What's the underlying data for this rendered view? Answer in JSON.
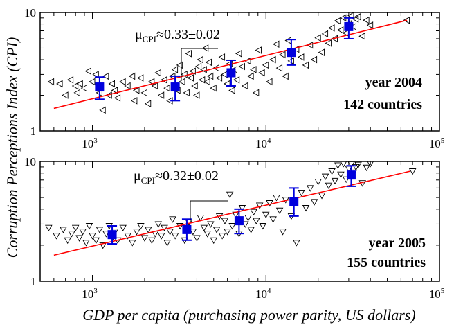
{
  "chart_data": [
    {
      "type": "scatter",
      "xscale": "log",
      "yscale": "log",
      "xlim": [
        500,
        100000
      ],
      "ylim": [
        1,
        10
      ],
      "annotation": {
        "year": "year 2004",
        "countries": "142 countries"
      },
      "mu": {
        "symbol": "μ",
        "sub": "CPI",
        "text": "≈0.33±0.02"
      },
      "fit_line": {
        "color": "#ff0000",
        "points": [
          {
            "x": 600,
            "y": 1.55
          },
          {
            "x": 65000,
            "y": 8.6
          }
        ]
      },
      "binned": {
        "color": "#0000dd",
        "points": [
          {
            "x": 1100,
            "y": 2.35,
            "lo": 1.85,
            "hi": 2.85
          },
          {
            "x": 3000,
            "y": 2.35,
            "lo": 1.8,
            "hi": 2.9
          },
          {
            "x": 6300,
            "y": 3.1,
            "lo": 2.4,
            "hi": 3.95
          },
          {
            "x": 14000,
            "y": 4.6,
            "lo": 3.6,
            "hi": 5.9
          },
          {
            "x": 30000,
            "y": 7.6,
            "lo": 6.0,
            "hi": 9.0
          }
        ]
      },
      "marker": "triangle-left",
      "scatter": [
        {
          "x": 580,
          "y": 2.6
        },
        {
          "x": 650,
          "y": 2.5
        },
        {
          "x": 700,
          "y": 2.0
        },
        {
          "x": 750,
          "y": 2.7
        },
        {
          "x": 800,
          "y": 2.4
        },
        {
          "x": 820,
          "y": 2.1
        },
        {
          "x": 850,
          "y": 2.5
        },
        {
          "x": 900,
          "y": 2.3
        },
        {
          "x": 950,
          "y": 3.2
        },
        {
          "x": 1000,
          "y": 2.6
        },
        {
          "x": 1050,
          "y": 3.0
        },
        {
          "x": 1100,
          "y": 2.1
        },
        {
          "x": 1150,
          "y": 1.5
        },
        {
          "x": 1200,
          "y": 2.9
        },
        {
          "x": 1250,
          "y": 2.0
        },
        {
          "x": 1300,
          "y": 2.5
        },
        {
          "x": 1350,
          "y": 2.2
        },
        {
          "x": 1400,
          "y": 1.9
        },
        {
          "x": 1500,
          "y": 2.6
        },
        {
          "x": 1600,
          "y": 2.4
        },
        {
          "x": 1700,
          "y": 2.9
        },
        {
          "x": 1750,
          "y": 1.8
        },
        {
          "x": 1800,
          "y": 2.2
        },
        {
          "x": 1900,
          "y": 2.8
        },
        {
          "x": 2000,
          "y": 2.1
        },
        {
          "x": 2100,
          "y": 1.7
        },
        {
          "x": 2200,
          "y": 2.6
        },
        {
          "x": 2300,
          "y": 2.4
        },
        {
          "x": 2400,
          "y": 3.1
        },
        {
          "x": 2500,
          "y": 2.0
        },
        {
          "x": 2600,
          "y": 2.7
        },
        {
          "x": 2700,
          "y": 2.3
        },
        {
          "x": 2800,
          "y": 1.8
        },
        {
          "x": 2900,
          "y": 2.9
        },
        {
          "x": 3000,
          "y": 3.3
        },
        {
          "x": 3100,
          "y": 2.2
        },
        {
          "x": 3200,
          "y": 3.6
        },
        {
          "x": 3300,
          "y": 2.6
        },
        {
          "x": 3400,
          "y": 3.0
        },
        {
          "x": 3500,
          "y": 2.1
        },
        {
          "x": 3600,
          "y": 4.5
        },
        {
          "x": 3700,
          "y": 2.8
        },
        {
          "x": 3800,
          "y": 3.2
        },
        {
          "x": 3900,
          "y": 2.4
        },
        {
          "x": 4000,
          "y": 2.0
        },
        {
          "x": 4100,
          "y": 3.5
        },
        {
          "x": 4200,
          "y": 4.0
        },
        {
          "x": 4300,
          "y": 2.7
        },
        {
          "x": 4400,
          "y": 3.3
        },
        {
          "x": 4500,
          "y": 5.0
        },
        {
          "x": 4600,
          "y": 2.6
        },
        {
          "x": 4700,
          "y": 3.8
        },
        {
          "x": 4800,
          "y": 2.9
        },
        {
          "x": 5000,
          "y": 2.3
        },
        {
          "x": 5200,
          "y": 3.4
        },
        {
          "x": 5400,
          "y": 2.8
        },
        {
          "x": 5600,
          "y": 4.2
        },
        {
          "x": 5800,
          "y": 3.0
        },
        {
          "x": 6000,
          "y": 2.5
        },
        {
          "x": 6200,
          "y": 3.7
        },
        {
          "x": 6400,
          "y": 2.2
        },
        {
          "x": 6600,
          "y": 3.3
        },
        {
          "x": 6800,
          "y": 2.7
        },
        {
          "x": 7000,
          "y": 4.5
        },
        {
          "x": 7300,
          "y": 3.5
        },
        {
          "x": 7600,
          "y": 2.4
        },
        {
          "x": 7900,
          "y": 3.9
        },
        {
          "x": 8200,
          "y": 2.9
        },
        {
          "x": 8500,
          "y": 3.3
        },
        {
          "x": 8800,
          "y": 2.1
        },
        {
          "x": 9100,
          "y": 4.8
        },
        {
          "x": 9500,
          "y": 3.1
        },
        {
          "x": 10000,
          "y": 3.6
        },
        {
          "x": 10500,
          "y": 2.6
        },
        {
          "x": 11000,
          "y": 4.0
        },
        {
          "x": 11500,
          "y": 5.4
        },
        {
          "x": 12000,
          "y": 3.4
        },
        {
          "x": 12500,
          "y": 4.4
        },
        {
          "x": 13000,
          "y": 2.9
        },
        {
          "x": 13500,
          "y": 5.8
        },
        {
          "x": 14000,
          "y": 3.9
        },
        {
          "x": 15000,
          "y": 4.9
        },
        {
          "x": 16000,
          "y": 4.2
        },
        {
          "x": 17000,
          "y": 3.6
        },
        {
          "x": 18000,
          "y": 5.3
        },
        {
          "x": 19000,
          "y": 4.0
        },
        {
          "x": 20000,
          "y": 6.1
        },
        {
          "x": 21000,
          "y": 4.6
        },
        {
          "x": 22000,
          "y": 6.6
        },
        {
          "x": 23000,
          "y": 5.5
        },
        {
          "x": 24000,
          "y": 7.4
        },
        {
          "x": 25000,
          "y": 6.0
        },
        {
          "x": 26000,
          "y": 8.5
        },
        {
          "x": 27000,
          "y": 7.1
        },
        {
          "x": 28000,
          "y": 9.0
        },
        {
          "x": 29000,
          "y": 6.7
        },
        {
          "x": 30000,
          "y": 8.0
        },
        {
          "x": 31000,
          "y": 9.4
        },
        {
          "x": 32000,
          "y": 7.6
        },
        {
          "x": 33000,
          "y": 8.8
        },
        {
          "x": 34000,
          "y": 9.2
        },
        {
          "x": 36000,
          "y": 6.3
        },
        {
          "x": 38000,
          "y": 8.6
        },
        {
          "x": 40000,
          "y": 7.8
        },
        {
          "x": 65000,
          "y": 8.6
        }
      ]
    },
    {
      "type": "scatter",
      "xscale": "log",
      "yscale": "log",
      "xlim": [
        500,
        100000
      ],
      "ylim": [
        1,
        10
      ],
      "annotation": {
        "year": "year 2005",
        "countries": "155 countries"
      },
      "mu": {
        "symbol": "μ",
        "sub": "CPI",
        "text": "≈0.32±0.02"
      },
      "fit_line": {
        "color": "#ff0000",
        "points": [
          {
            "x": 600,
            "y": 1.65
          },
          {
            "x": 68000,
            "y": 8.3
          }
        ]
      },
      "binned": {
        "color": "#0000dd",
        "points": [
          {
            "x": 1300,
            "y": 2.45,
            "lo": 2.05,
            "hi": 2.9
          },
          {
            "x": 3500,
            "y": 2.7,
            "lo": 2.2,
            "hi": 3.3
          },
          {
            "x": 7000,
            "y": 3.2,
            "lo": 2.5,
            "hi": 4.0
          },
          {
            "x": 14500,
            "y": 4.6,
            "lo": 3.5,
            "hi": 6.0
          },
          {
            "x": 31000,
            "y": 7.7,
            "lo": 6.2,
            "hi": 9.2
          }
        ]
      },
      "marker": "triangle-down",
      "scatter": [
        {
          "x": 560,
          "y": 2.8
        },
        {
          "x": 620,
          "y": 2.4
        },
        {
          "x": 680,
          "y": 2.7
        },
        {
          "x": 720,
          "y": 2.2
        },
        {
          "x": 760,
          "y": 2.5
        },
        {
          "x": 800,
          "y": 2.8
        },
        {
          "x": 840,
          "y": 2.3
        },
        {
          "x": 880,
          "y": 2.6
        },
        {
          "x": 920,
          "y": 2.1
        },
        {
          "x": 960,
          "y": 2.9
        },
        {
          "x": 1000,
          "y": 2.4
        },
        {
          "x": 1050,
          "y": 2.2
        },
        {
          "x": 1100,
          "y": 2.7
        },
        {
          "x": 1150,
          "y": 2.0
        },
        {
          "x": 1200,
          "y": 2.5
        },
        {
          "x": 1250,
          "y": 2.9
        },
        {
          "x": 1300,
          "y": 2.3
        },
        {
          "x": 1350,
          "y": 2.6
        },
        {
          "x": 1400,
          "y": 2.2
        },
        {
          "x": 1500,
          "y": 2.8
        },
        {
          "x": 1600,
          "y": 2.4
        },
        {
          "x": 1700,
          "y": 2.1
        },
        {
          "x": 1800,
          "y": 2.6
        },
        {
          "x": 1900,
          "y": 2.9
        },
        {
          "x": 2000,
          "y": 2.3
        },
        {
          "x": 2100,
          "y": 2.7
        },
        {
          "x": 2200,
          "y": 2.2
        },
        {
          "x": 2300,
          "y": 2.5
        },
        {
          "x": 2400,
          "y": 3.0
        },
        {
          "x": 2500,
          "y": 2.4
        },
        {
          "x": 2600,
          "y": 2.8
        },
        {
          "x": 2700,
          "y": 2.1
        },
        {
          "x": 2800,
          "y": 2.6
        },
        {
          "x": 2900,
          "y": 3.3
        },
        {
          "x": 3000,
          "y": 2.4
        },
        {
          "x": 3200,
          "y": 2.9
        },
        {
          "x": 3400,
          "y": 2.2
        },
        {
          "x": 3600,
          "y": 3.1
        },
        {
          "x": 3800,
          "y": 2.6
        },
        {
          "x": 4000,
          "y": 2.3
        },
        {
          "x": 4200,
          "y": 3.4
        },
        {
          "x": 4400,
          "y": 2.8
        },
        {
          "x": 4600,
          "y": 2.5
        },
        {
          "x": 4800,
          "y": 3.0
        },
        {
          "x": 5000,
          "y": 2.2
        },
        {
          "x": 5200,
          "y": 2.7
        },
        {
          "x": 5400,
          "y": 3.5
        },
        {
          "x": 5600,
          "y": 2.4
        },
        {
          "x": 5800,
          "y": 3.2
        },
        {
          "x": 6000,
          "y": 2.6
        },
        {
          "x": 6200,
          "y": 5.3
        },
        {
          "x": 6400,
          "y": 2.9
        },
        {
          "x": 6700,
          "y": 3.6
        },
        {
          "x": 7000,
          "y": 2.5
        },
        {
          "x": 7300,
          "y": 4.1
        },
        {
          "x": 7600,
          "y": 3.0
        },
        {
          "x": 7900,
          "y": 3.4
        },
        {
          "x": 8200,
          "y": 2.7
        },
        {
          "x": 8500,
          "y": 3.8
        },
        {
          "x": 8800,
          "y": 3.2
        },
        {
          "x": 9200,
          "y": 4.3
        },
        {
          "x": 9600,
          "y": 2.9
        },
        {
          "x": 10000,
          "y": 3.6
        },
        {
          "x": 10500,
          "y": 4.5
        },
        {
          "x": 11000,
          "y": 3.3
        },
        {
          "x": 11500,
          "y": 5.0
        },
        {
          "x": 12000,
          "y": 3.9
        },
        {
          "x": 12500,
          "y": 2.6
        },
        {
          "x": 13000,
          "y": 4.8
        },
        {
          "x": 14000,
          "y": 3.5
        },
        {
          "x": 15000,
          "y": 2.1
        },
        {
          "x": 16000,
          "y": 5.5
        },
        {
          "x": 17000,
          "y": 4.1
        },
        {
          "x": 18000,
          "y": 6.0
        },
        {
          "x": 19000,
          "y": 4.6
        },
        {
          "x": 20000,
          "y": 6.8
        },
        {
          "x": 21000,
          "y": 5.2
        },
        {
          "x": 22000,
          "y": 7.5
        },
        {
          "x": 23000,
          "y": 6.3
        },
        {
          "x": 24000,
          "y": 8.3
        },
        {
          "x": 25000,
          "y": 6.9
        },
        {
          "x": 26000,
          "y": 9.3
        },
        {
          "x": 27000,
          "y": 7.8
        },
        {
          "x": 28000,
          "y": 9.6
        },
        {
          "x": 29000,
          "y": 7.1
        },
        {
          "x": 30000,
          "y": 8.7
        },
        {
          "x": 31000,
          "y": 9.5
        },
        {
          "x": 32000,
          "y": 8.1
        },
        {
          "x": 33000,
          "y": 9.0
        },
        {
          "x": 34000,
          "y": 9.4
        },
        {
          "x": 36000,
          "y": 6.6
        },
        {
          "x": 38000,
          "y": 8.9
        },
        {
          "x": 40000,
          "y": 9.6
        },
        {
          "x": 70000,
          "y": 8.3
        }
      ]
    }
  ],
  "shared": {
    "ylabel": "Corruption Perceptions Index (CPI)",
    "xlabel": "GDP per capita (purchasing power parity, US dollars)",
    "xticks": [
      {
        "value": 1000,
        "base": "10",
        "exp": "3"
      },
      {
        "value": 10000,
        "base": "10",
        "exp": "4"
      },
      {
        "value": 100000,
        "base": "10",
        "exp": "5"
      }
    ],
    "yticks": [
      {
        "value": 1,
        "label": "1"
      },
      {
        "value": 10,
        "label": "10"
      }
    ]
  }
}
